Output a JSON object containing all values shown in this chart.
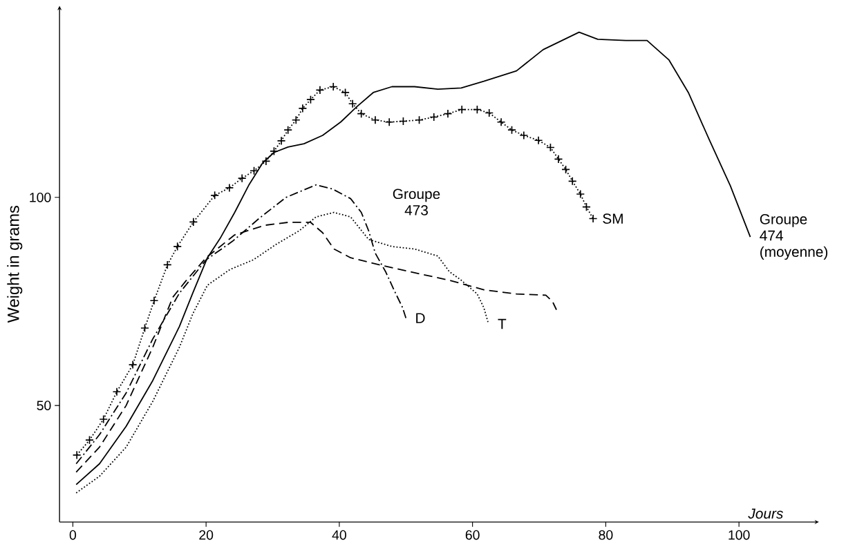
{
  "chart_data": {
    "type": "line",
    "xlabel": "Jours",
    "ylabel": "Weight in grams",
    "annotations": [
      "Groupe 473"
    ],
    "xlim": [
      -2,
      112
    ],
    "ylim": [
      22,
      146
    ],
    "xticks": [
      0,
      20,
      40,
      60,
      80,
      100
    ],
    "yticks": [
      50,
      100
    ],
    "grid": false,
    "legend": false,
    "series": [
      {
        "name": "SM",
        "color": "#000000",
        "marker": "cross",
        "line_style": "dotted",
        "x": [
          0.6,
          2.5,
          4.6,
          6.6,
          9,
          10.8,
          12.2,
          14.2,
          15.7,
          18.1,
          21.3,
          23.5,
          25.4,
          27.2,
          29,
          30.2,
          31.3,
          32.3,
          33.5,
          34.5,
          35.7,
          37.1,
          39.1,
          40.9,
          42,
          43.3,
          45.4,
          47.5,
          49.6,
          52,
          54.2,
          56.3,
          58.4,
          60.7,
          62.5,
          64.3,
          65.9,
          67.7,
          69.9,
          71.7,
          72.9,
          74,
          75,
          76.2,
          77.1,
          78.1
        ],
        "values": [
          38.1,
          41.7,
          46.7,
          53.3,
          59.8,
          68.6,
          75.2,
          83.8,
          88.2,
          94.1,
          100.5,
          102.3,
          104.6,
          106.4,
          108.7,
          111.1,
          113.6,
          116.2,
          118.6,
          121.4,
          123.5,
          125.8,
          126.6,
          125.2,
          122.5,
          120.1,
          118.6,
          118.1,
          118.3,
          118.6,
          119.3,
          120.1,
          121.1,
          121.1,
          120.3,
          118.1,
          116.2,
          114.9,
          113.7,
          112,
          109.2,
          106.7,
          103.9,
          100.8,
          97.7,
          94.9
        ]
      },
      {
        "name": "D",
        "color": "#000000",
        "marker": "none",
        "line_style": "dashdot",
        "x": [
          0.5,
          4,
          8,
          12,
          16,
          20,
          24,
          28,
          32,
          36.5,
          39,
          41.7,
          43.3,
          44.4,
          45.4,
          47,
          48.2,
          49.5,
          50
        ],
        "values": [
          36,
          43,
          53,
          66,
          77,
          85,
          89.5,
          95,
          100,
          103,
          102,
          99.7,
          96.4,
          92,
          86.6,
          82,
          77.8,
          73.5,
          71
        ]
      },
      {
        "color": "#000000",
        "marker": "none",
        "line_style": "dashed",
        "x": [
          0.5,
          4,
          8,
          12,
          15,
          17,
          20,
          24.3,
          28.8,
          32.3,
          35.7,
          37.5,
          39.2,
          41.7,
          46,
          51.3,
          56.5,
          61.7,
          66.6,
          71,
          72,
          72.6
        ],
        "values": [
          34,
          40,
          50,
          64,
          76,
          80,
          85.5,
          91,
          93.3,
          94,
          94,
          91.5,
          87.6,
          85.5,
          83.8,
          81.9,
          80.1,
          77.8,
          76.8,
          76.5,
          75,
          73
        ]
      },
      {
        "name": "T",
        "color": "#000000",
        "marker": "none",
        "line_style": "dotted",
        "x": [
          0.5,
          4,
          8,
          12,
          16,
          18,
          20.2,
          23.6,
          27.1,
          30.5,
          34,
          36.5,
          39.2,
          41.7,
          44.4,
          47.9,
          51.3,
          54.8,
          56.5,
          58.3,
          60.7,
          61.7,
          62.4
        ],
        "values": [
          29,
          33,
          40,
          51,
          64,
          72,
          78.9,
          82.7,
          85,
          88.7,
          92,
          95.3,
          96.4,
          95.3,
          89.9,
          88.2,
          87.6,
          85.9,
          82.2,
          80.1,
          76.8,
          73.5,
          69.6
        ]
      },
      {
        "name": "Groupe 474 (moyenne)",
        "color": "#000000",
        "marker": "none",
        "line_style": "solid",
        "x": [
          0.5,
          4,
          8,
          12,
          16,
          18,
          20.2,
          22.2,
          24.3,
          26.4,
          28.5,
          30.2,
          32.3,
          34.7,
          37.5,
          40.2,
          42.7,
          45.1,
          47.9,
          51.3,
          54.8,
          58.3,
          61.7,
          66.6,
          70.6,
          76,
          78.8,
          83,
          86.2,
          89.5,
          92.4,
          95.5,
          98.7,
          101.7
        ],
        "values": [
          31,
          36,
          45,
          56,
          69,
          77,
          85.5,
          90.4,
          96.4,
          102.9,
          108.3,
          110.8,
          112.1,
          112.9,
          114.9,
          118.1,
          121.9,
          125.2,
          126.6,
          126.6,
          126,
          126.3,
          127.9,
          130.4,
          135.5,
          139.7,
          138,
          137.7,
          137.7,
          133,
          125.2,
          114,
          102.8,
          90.5
        ]
      }
    ]
  }
}
